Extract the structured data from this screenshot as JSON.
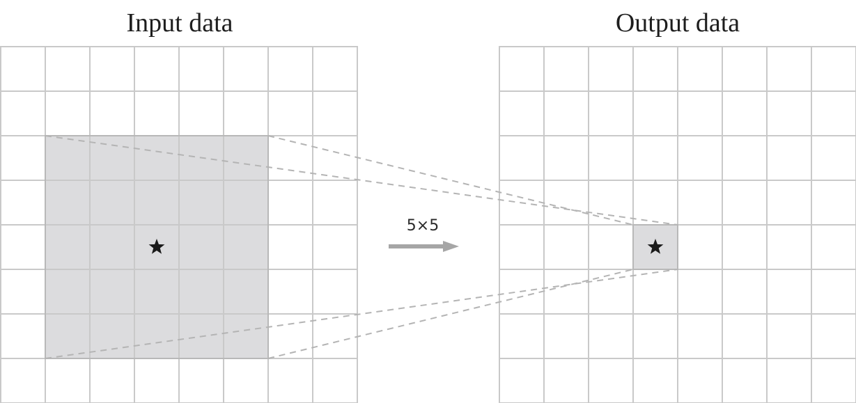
{
  "input_panel": {
    "title": "Input data",
    "rows": 8,
    "cols": 8
  },
  "output_panel": {
    "title": "Output data",
    "rows": 8,
    "cols": 8
  },
  "kernel": {
    "label": "5×5",
    "size": 5
  },
  "receptive_field": {
    "start_row": 2,
    "start_col": 1,
    "center_row": 4,
    "center_col": 3
  },
  "output_cell": {
    "row": 4,
    "col": 3
  },
  "marker_icon": "star-icon",
  "colors": {
    "highlight_fill": "#dcdcde",
    "highlight_stroke": "#b8b8b8",
    "grid_line": "#c9c9c9",
    "dashed_line": "#b4b4b4",
    "arrow": "#a6a6a6",
    "star": "#1a1a1a"
  }
}
